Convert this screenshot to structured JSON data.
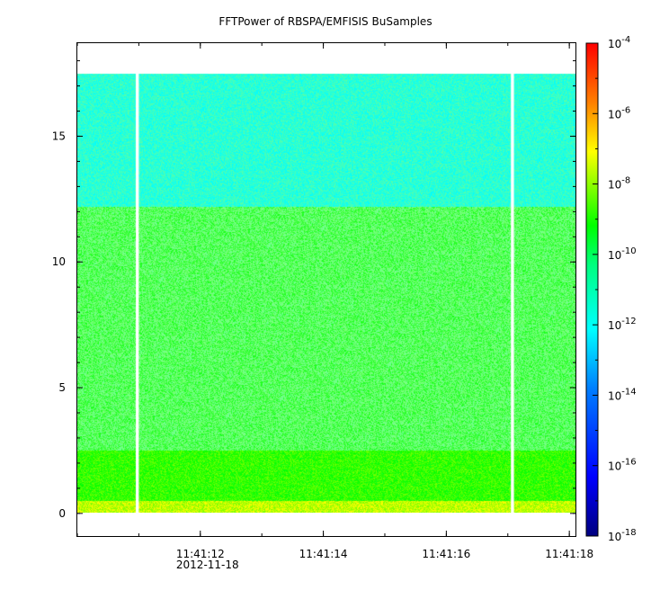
{
  "title": "FFTPower of RBSPA/EMFISIS  BuSamples",
  "chart_data": {
    "type": "heatmap",
    "title": "FFTPower of RBSPA/EMFISIS  BuSamples",
    "xlabel": "",
    "ylabel": "",
    "x_ticks": [
      {
        "value": "11:41:12",
        "sub": "2012-11-18"
      },
      {
        "value": "11:41:14",
        "sub": ""
      },
      {
        "value": "11:41:16",
        "sub": ""
      },
      {
        "value": "11:41:18",
        "sub": ""
      }
    ],
    "x_range": [
      "11:41:10.0",
      "11:41:18.1"
    ],
    "y_ticks": [
      0,
      5,
      10,
      15
    ],
    "ylim": [
      -0.9,
      18.7
    ],
    "data_top_y": 17.5,
    "colorbar": {
      "scale": "log",
      "range": [
        1e-18,
        0.0001
      ],
      "tick_exponents": [
        -4,
        -6,
        -8,
        -10,
        -12,
        -14,
        -16,
        -18
      ],
      "colormap": [
        "#00007f",
        "#0000ff",
        "#007fff",
        "#00ffff",
        "#7fff7f",
        "#00ff00",
        "#ffff00",
        "#ff7f00",
        "#ff0000"
      ]
    },
    "gaps": [
      {
        "start": "11:41:10.95",
        "end": "11:41:11.0"
      },
      {
        "start": "11:41:17.05",
        "end": "11:41:17.1"
      }
    ],
    "bands": [
      {
        "y_from": 12.2,
        "y_to": 17.5,
        "log10_power": -11.5
      },
      {
        "y_from": 2.5,
        "y_to": 12.2,
        "log10_power": -10.0
      },
      {
        "y_from": 0.5,
        "y_to": 2.5,
        "log10_power": -8.8
      },
      {
        "y_from": 0.0,
        "y_to": 0.5,
        "log10_power": -8.0
      }
    ]
  }
}
